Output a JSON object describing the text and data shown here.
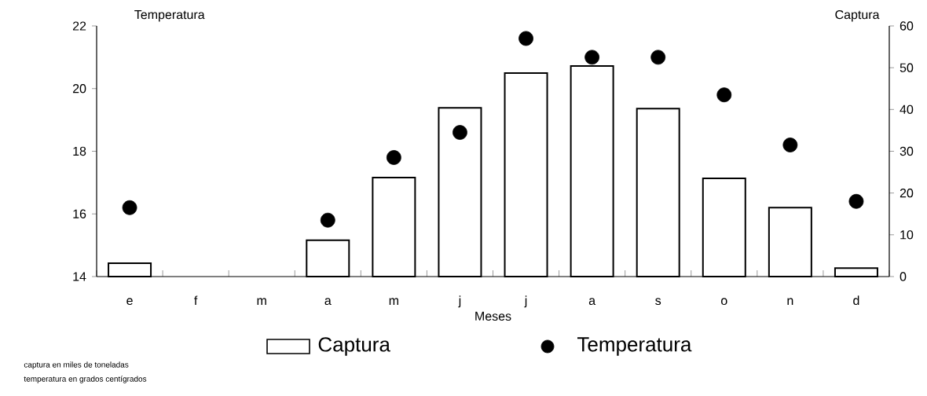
{
  "chart_data": {
    "type": "bar",
    "xlabel": "Meses",
    "ylabel": "Temperatura",
    "y2label": "Captura",
    "categories": [
      "e",
      "f",
      "m",
      "a",
      "m",
      "j",
      "j",
      "a",
      "s",
      "o",
      "n",
      "d"
    ],
    "series": [
      {
        "name": "Captura",
        "axis": "y2",
        "color": "#ffffff",
        "values": [
          3.2,
          null,
          null,
          8.7,
          23.7,
          40.4,
          48.7,
          50.4,
          40.2,
          23.5,
          16.5,
          2.0
        ]
      },
      {
        "name": "Temperatura",
        "type": "scatter",
        "axis": "y",
        "color": "#000000",
        "marker": "circle",
        "values": [
          16.2,
          null,
          null,
          15.8,
          17.8,
          18.6,
          21.6,
          21.0,
          21.0,
          19.8,
          18.2,
          16.4
        ]
      }
    ],
    "ylim": [
      14,
      22
    ],
    "yticks": [
      14,
      16,
      18,
      20,
      22
    ],
    "y2lim": [
      0,
      60
    ],
    "y2ticks": [
      0,
      10,
      20,
      30,
      40,
      50,
      60
    ],
    "legend": "bottom",
    "annotations": [
      "captura en miles de toneladas",
      "temperatura en grados centígrados"
    ]
  }
}
